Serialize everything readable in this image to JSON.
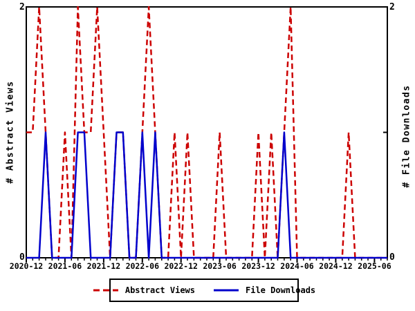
{
  "axes": {
    "y_left": {
      "label": "# Abstract Views",
      "top_tick": "2",
      "bottom_tick": "0"
    },
    "y_right": {
      "label": "# File Downloads",
      "top_tick": "2",
      "bottom_tick": "0"
    }
  },
  "legend": [
    {
      "label": "Abstract Views",
      "color": "#cc0000",
      "style": "dashed"
    },
    {
      "label": "File Downloads",
      "color": "#0000cc",
      "style": "solid"
    }
  ],
  "chart_data": {
    "type": "line",
    "x": [
      "2020-12",
      "2021-01",
      "2021-02",
      "2021-03",
      "2021-04",
      "2021-05",
      "2021-06",
      "2021-07",
      "2021-08",
      "2021-09",
      "2021-10",
      "2021-11",
      "2021-12",
      "2022-01",
      "2022-02",
      "2022-03",
      "2022-04",
      "2022-05",
      "2022-06",
      "2022-07",
      "2022-08",
      "2022-09",
      "2022-10",
      "2022-11",
      "2022-12",
      "2023-01",
      "2023-02",
      "2023-03",
      "2023-04",
      "2023-05",
      "2023-06",
      "2023-07",
      "2023-08",
      "2023-09",
      "2023-10",
      "2023-11",
      "2023-12",
      "2024-01",
      "2024-02",
      "2024-03",
      "2024-04",
      "2024-05",
      "2024-06",
      "2024-07",
      "2024-08",
      "2024-09",
      "2024-10",
      "2024-11",
      "2024-12",
      "2025-01",
      "2025-02",
      "2025-03",
      "2025-04",
      "2025-05",
      "2025-06",
      "2025-07",
      "2025-08"
    ],
    "x_tick_labels": [
      "2020-12",
      "2021-06",
      "2021-12",
      "2022-06",
      "2022-12",
      "2023-06",
      "2023-12",
      "2024-06",
      "2024-12",
      "2025-06"
    ],
    "x_label_every": 6,
    "series": [
      {
        "name": "Abstract Views",
        "color": "#cc0000",
        "dash": true,
        "values": [
          1,
          1,
          2,
          1,
          0,
          0,
          1,
          0,
          2,
          1,
          1,
          2,
          1,
          0,
          1,
          1,
          0,
          0,
          1,
          2,
          1,
          0,
          0,
          1,
          0,
          1,
          0,
          0,
          0,
          0,
          1,
          0,
          0,
          0,
          0,
          0,
          1,
          0,
          1,
          0,
          1,
          2,
          0,
          0,
          0,
          0,
          0,
          0,
          0,
          0,
          1,
          0,
          0,
          0,
          0,
          0,
          0
        ]
      },
      {
        "name": "File Downloads",
        "color": "#0000cc",
        "dash": false,
        "values": [
          0,
          0,
          0,
          1,
          0,
          0,
          0,
          0,
          1,
          1,
          0,
          0,
          0,
          0,
          1,
          1,
          0,
          0,
          1,
          0,
          1,
          0,
          0,
          0,
          0,
          0,
          0,
          0,
          0,
          0,
          0,
          0,
          0,
          0,
          0,
          0,
          0,
          0,
          0,
          0,
          1,
          0,
          0,
          0,
          0,
          0,
          0,
          0,
          0,
          0,
          0,
          0,
          0,
          0,
          0,
          0,
          0
        ]
      }
    ],
    "ylim": [
      0,
      2
    ],
    "y_ticks": [
      0,
      1,
      2
    ],
    "grid": false,
    "legend_position": "bottom",
    "frame": true
  }
}
